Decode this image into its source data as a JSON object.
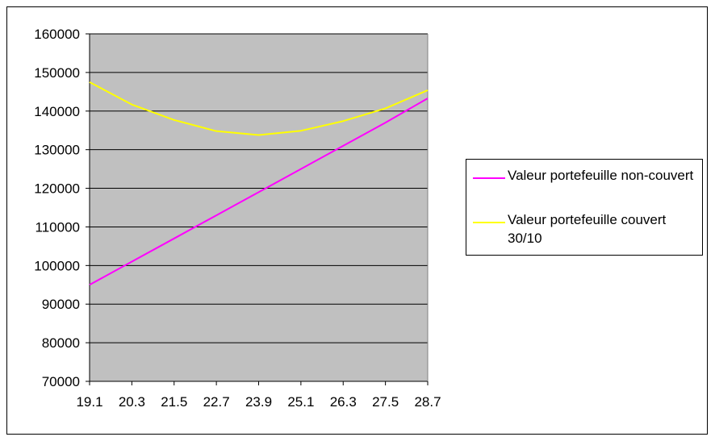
{
  "chart_data": {
    "type": "line",
    "x": [
      "19.1",
      "20.3",
      "21.5",
      "22.7",
      "23.9",
      "25.1",
      "26.3",
      "27.5",
      "28.7"
    ],
    "series": [
      {
        "name": "Valeur portefeuille non-couvert",
        "color": "#ff00ff",
        "values": [
          95000,
          101000,
          107000,
          113000,
          119000,
          125000,
          131000,
          137000,
          143300
        ]
      },
      {
        "name": "Valeur portefeuille couvert 30/10",
        "color": "#ffff00",
        "values": [
          147500,
          141700,
          137700,
          134800,
          133800,
          134900,
          137400,
          140700,
          145400
        ]
      }
    ],
    "ylim": [
      70000,
      160000
    ],
    "y_ticks": [
      "70000",
      "80000",
      "90000",
      "100000",
      "110000",
      "120000",
      "130000",
      "140000",
      "150000",
      "160000"
    ],
    "plot_background": "#c0c0c0",
    "grid": "horizontal",
    "legend_position": "right"
  }
}
